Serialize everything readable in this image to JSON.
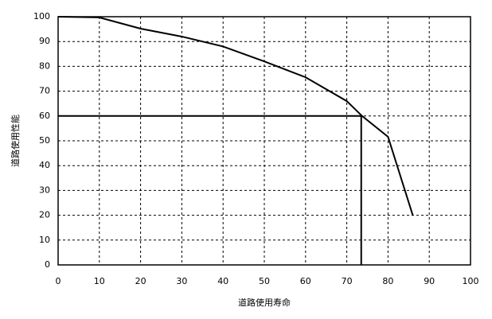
{
  "chart_data": {
    "type": "line",
    "x_label": "道路使用寿命",
    "y_label": "道路使用性能",
    "x": [
      0,
      10,
      20,
      30,
      40,
      50,
      60,
      70,
      73.7,
      80,
      86
    ],
    "series": [
      {
        "color": "#000000",
        "values": [
          100,
          99.7,
          95.2,
          92,
          88,
          82,
          75.6,
          66,
          60,
          51.6,
          20
        ]
      }
    ],
    "reference_point": {
      "x": 73.5,
      "y": 60,
      "color": "#000000"
    },
    "xlim": [
      0,
      100
    ],
    "ylim": [
      0,
      100
    ],
    "xticks": [
      0,
      10,
      20,
      30,
      40,
      50,
      60,
      70,
      80,
      90,
      100
    ],
    "yticks": [
      0,
      10,
      20,
      30,
      40,
      50,
      60,
      70,
      80,
      90,
      100
    ],
    "grid": true
  }
}
